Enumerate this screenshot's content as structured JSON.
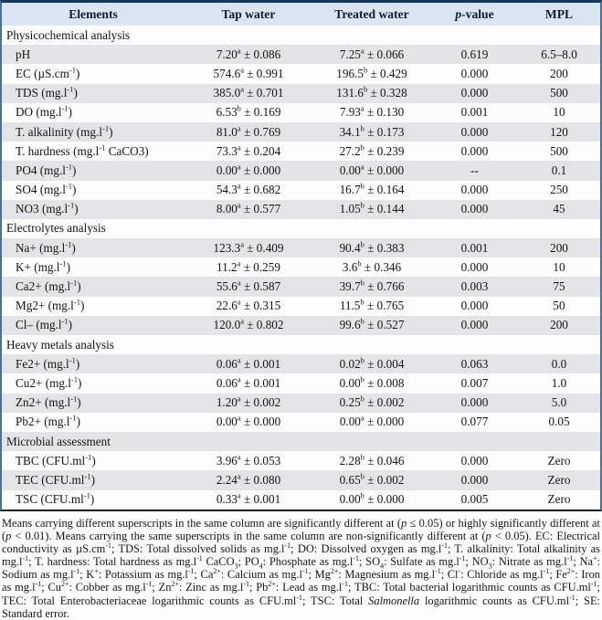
{
  "colors": {
    "header_bg": "#dbe5f1",
    "stripe_bg": "#e4e4e6",
    "border_top": "#17365d",
    "border_side": "#46719c",
    "border_bottom": "#1b1b1b"
  },
  "table": {
    "columns": [
      "Elements",
      "Tap water",
      "Treated water",
      "*p*-value",
      "MPL"
    ],
    "sections": [
      {
        "title": "Physicochemical analysis",
        "rows": [
          {
            "element": "pH",
            "tap": "7.20^{a} ± 0.086",
            "treated": "7.25^{a} ± 0.066",
            "p": "0.619",
            "mpl": "6.5–8.0"
          },
          {
            "element": "EC (µS.cm^{-1})",
            "tap": "574.6^{a} ± 0.991",
            "treated": "196.5^{b} ± 0.429",
            "p": "0.000",
            "mpl": "200"
          },
          {
            "element": "TDS (mg.l^{-1})",
            "tap": "385.0^{a} ± 0.701",
            "treated": "131.6^{b} ± 0.328",
            "p": "0.000",
            "mpl": "500"
          },
          {
            "element": "DO (mg.l^{-1})",
            "tap": "6.53^{b} ± 0.169",
            "treated": "7.93^{a} ± 0.130",
            "p": "0.001",
            "mpl": "10"
          },
          {
            "element": "T. alkalinity (mg.l^{-1})",
            "tap": "81.0^{a} ± 0.769",
            "treated": "34.1^{b} ± 0.173",
            "p": "0.000",
            "mpl": "120"
          },
          {
            "element": "T. hardness (mg.l^{-1} CaCO3)",
            "tap": "73.3^{a} ± 0.204",
            "treated": "27.2^{b} ± 0.239",
            "p": "0.000",
            "mpl": "500"
          },
          {
            "element": "PO4 (mg.l^{-1})",
            "tap": "0.00^{a} ± 0.000",
            "treated": "0.00^{a} ± 0.000",
            "p": "--",
            "mpl": "0.1"
          },
          {
            "element": "SO4 (mg.l^{-1})",
            "tap": "54.3^{a} ± 0.682",
            "treated": "16.7^{b} ± 0.164",
            "p": "0.000",
            "mpl": "250"
          },
          {
            "element": "NO3 (mg.l^{-1})",
            "tap": "8.00^{a} ± 0.577",
            "treated": "1.05^{b} ± 0.144",
            "p": "0.000",
            "mpl": "45"
          }
        ]
      },
      {
        "title": "Electrolytes analysis",
        "rows": [
          {
            "element": "Na+ (mg.l^{-1})",
            "tap": "123.3^{a} ± 0.409",
            "treated": "90.4^{b} ± 0.383",
            "p": "0.001",
            "mpl": "200"
          },
          {
            "element": "K+ (mg.l^{-1})",
            "tap": "11.2^{a} ± 0.259",
            "treated": "3.6^{b} ± 0.346",
            "p": "0.000",
            "mpl": "10"
          },
          {
            "element": "Ca2+ (mg.l^{-1})",
            "tap": "55.6^{a} ± 0.587",
            "treated": "39.7^{b} ± 0.766",
            "p": "0.003",
            "mpl": "75"
          },
          {
            "element": "Mg2+ (mg.l^{-1})",
            "tap": "22.6^{a} ± 0.315",
            "treated": "11.5^{b} ± 0.765",
            "p": "0.000",
            "mpl": "50"
          },
          {
            "element": "Cl– (mg.l^{-1})",
            "tap": "120.0^{a} ± 0.802",
            "treated": "99.6^{b} ± 0.527",
            "p": "0.000",
            "mpl": "200"
          }
        ]
      },
      {
        "title": "Heavy metals analysis",
        "rows": [
          {
            "element": "Fe2+ (mg.l^{-1})",
            "tap": "0.06^{a} ± 0.001",
            "treated": "0.02^{b} ± 0.004",
            "p": "0.063",
            "mpl": "0.0"
          },
          {
            "element": "Cu2+ (mg.l^{-1})",
            "tap": "0.06^{a} ± 0.001",
            "treated": "0.00^{b} ± 0.008",
            "p": "0.007",
            "mpl": "1.0"
          },
          {
            "element": "Zn2+ (mg.l^{-1})",
            "tap": "1.20^{a} ± 0.002",
            "treated": "0.25^{b} ± 0.002",
            "p": "0.000",
            "mpl": "5.0"
          },
          {
            "element": "Pb2+ (mg.l^{-1})",
            "tap": "0.00^{a} ± 0.000",
            "treated": "0.00^{a} ± 0.000",
            "p": "0.077",
            "mpl": "0.05"
          }
        ]
      },
      {
        "title": "Microbial assessment",
        "rows": [
          {
            "element": "TBC (CFU.ml^{-1})",
            "tap": "3.96^{a} ± 0.053",
            "treated": "2.28^{b} ± 0.046",
            "p": "0.000",
            "mpl": "Zero"
          },
          {
            "element": "TEC (CFU.ml^{-1})",
            "tap": "2.24^{a} ± 0.080",
            "treated": "0.65^{b} ± 0.002",
            "p": "0.000",
            "mpl": "Zero"
          },
          {
            "element": "TSC (CFU.ml^{-1})",
            "tap": "0.33^{a} ± 0.001",
            "treated": "0.00^{b} ± 0.000",
            "p": "0.005",
            "mpl": "Zero"
          }
        ]
      }
    ]
  },
  "footnote": "Means carrying different superscripts in the same column are significantly different at (*p* ≤ 0.05) or highly significantly different at (*p* < 0.01). Means carrying the same superscripts in the same column are non-significantly different at (*p* < 0.05). EC: Electrical conductivity as µS.cm^{-1}; TDS: Total dissolved solids as mg.l^{-1}; DO: Dissolved oxygen as mg.l^{-1}; T. alkalinity: Total alkalinity as mg.l^{-1}; T. hardness: Total hardness as mg.l^{-1} CaCO_{3}; PO_{4}: Phosphate as mg.l^{-1}; SO_{4}: Sulfate as mg.l^{-1}; NO_{3}: Nitrate as mg.l^{-1}; Na^{+}: Sodium as mg.l^{-1}; K^{+}: Potassium as mg.l^{-1}; Ca^{2+}: Calcium as mg.l^{-1}; Mg^{2+}: Magnesium as mg.l^{-1}; Cl^{-}: Chloride as mg.l^{-1}; Fe^{2+}: Iron as mg.l^{-1}; Cu^{2+}: Cobber as mg.l^{-1}; Zn^{2+}: Zinc as mg.l^{-1}; Pb^{2+}: Lead as mg.l^{-1}; TBC: Total bacterial logarithmic counts as CFU.ml^{-1}; TEC: Total Enterobacteriaceae logarithmic counts as CFU.ml^{-1}; TSC: Total *Salmonella* logarithmic counts as CFU.ml^{-1}; SE: Standard error."
}
